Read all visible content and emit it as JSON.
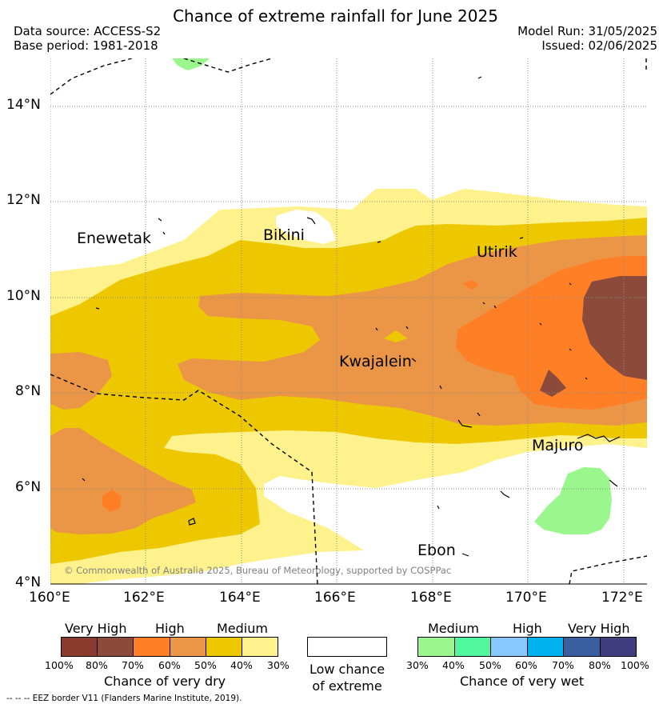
{
  "header": {
    "title": "Chance of extreme rainfall for June 2025",
    "data_source": "Data source: ACCESS-S2",
    "base_period": "Base period: 1981-2018",
    "model_run": "Model Run: 31/05/2025",
    "issued": "Issued: 02/06/2025"
  },
  "map": {
    "lon_range": [
      160,
      172.5
    ],
    "lat_range": [
      4,
      15
    ],
    "grid": true,
    "lon_ticks": [
      "160°E",
      "162°E",
      "164°E",
      "166°E",
      "168°E",
      "170°E",
      "172°E"
    ],
    "lat_ticks": [
      "14°N",
      "12°N",
      "10°N",
      "8°N",
      "6°N",
      "4°N"
    ],
    "places": [
      "Enewetak",
      "Bikini",
      "Utirik",
      "Kwajalein",
      "Majuro",
      "Ebon"
    ],
    "copyright": "© Commonwealth of Australia 2025, Bureau of Meteorology, supported by COSPPac"
  },
  "colors": {
    "dry_100_80": "#8b3a2e",
    "dry_80_70": "#8b4a3a",
    "dry_70_60": "#ff7f27",
    "dry_60_50": "#eb9646",
    "dry_50_40": "#edc800",
    "dry_40_30": "#fff28c",
    "wet_30_40": "#99f78d",
    "wet_40_50": "#50f79e",
    "wet_50_60": "#86c8ff",
    "wet_60_70": "#00b2ee",
    "wet_70_80": "#3a5fa0",
    "wet_80_100": "#3f3d7e"
  },
  "legend": {
    "dry": {
      "tiers": [
        "Very High",
        "High",
        "Medium"
      ],
      "ticks": [
        "100%",
        "80%",
        "70%",
        "60%",
        "50%",
        "40%",
        "30%"
      ],
      "label": "Chance of very dry"
    },
    "neutral": {
      "line1": "Low chance",
      "line2": "of extreme"
    },
    "wet": {
      "tiers": [
        "Medium",
        "High",
        "Very High"
      ],
      "ticks": [
        "30%",
        "40%",
        "50%",
        "60%",
        "70%",
        "80%",
        "100%"
      ],
      "label": "Chance of very wet"
    }
  },
  "footer": "--  --  -- EEZ border V11 (Flanders Marine Institute, 2019)."
}
